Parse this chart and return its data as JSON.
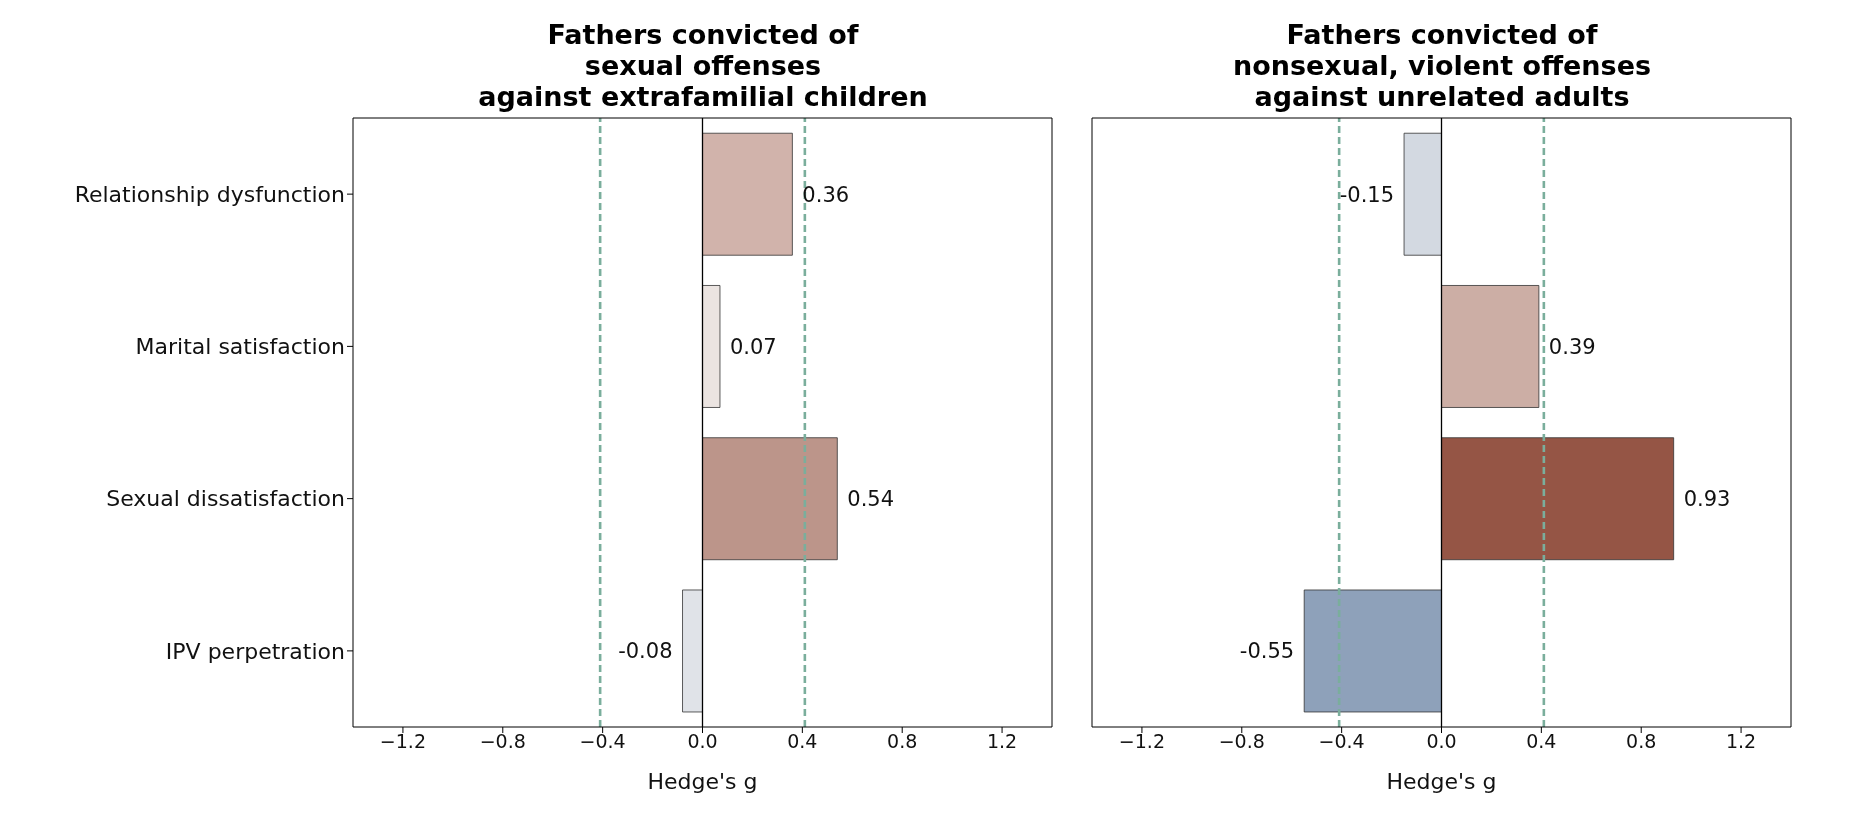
{
  "chart_data": [
    {
      "type": "bar",
      "orientation": "horizontal",
      "title": "Fathers convicted of\nsexual offenses\nagainst extrafamilial children",
      "xlabel": "Hedge's g",
      "categories": [
        "Relationship dysfunction",
        "Marital satisfaction",
        "Sexual dissatisfaction",
        "IPV perpetration"
      ],
      "values": [
        0.36,
        0.07,
        0.54,
        -0.08
      ],
      "colors": [
        "#d1b3ab",
        "#ebe4e1",
        "#bc958a",
        "#e0e3e8"
      ],
      "data_labels": true,
      "xlim": [
        -1.4,
        1.4
      ],
      "xticks": [
        {
          "value": -1.2,
          "label": "−1.2"
        },
        {
          "value": -0.8,
          "label": "−0.8"
        },
        {
          "value": -0.4,
          "label": "−0.4"
        },
        {
          "value": 0,
          "label": "0.0"
        },
        {
          "value": 0.4,
          "label": "0.4"
        },
        {
          "value": 0.8,
          "label": "0.8"
        },
        {
          "value": 1.2,
          "label": "1.2"
        }
      ],
      "ref_lines": [
        {
          "axis": "x",
          "value": 0,
          "color": "#000000",
          "line_style": "solid"
        },
        {
          "axis": "x",
          "value": -0.41,
          "color": "#7aae9c",
          "line_style": "dashed"
        },
        {
          "axis": "x",
          "value": 0.41,
          "color": "#7aae9c",
          "line_style": "dashed"
        }
      ]
    },
    {
      "type": "bar",
      "orientation": "horizontal",
      "title": "Fathers convicted of\nnonsexual, violent offenses\nagainst unrelated adults",
      "xlabel": "Hedge's g",
      "tick_labels": "x",
      "values": [
        -0.15,
        0.39,
        0.93,
        -0.55
      ],
      "colors": [
        "#d3d9e1",
        "#ccaea5",
        "#955545",
        "#8ea1ba"
      ],
      "data_labels": true,
      "xlim": [
        -1.4,
        1.4
      ],
      "xticks": [
        {
          "value": -1.2,
          "label": "−1.2"
        },
        {
          "value": -0.8,
          "label": "−0.8"
        },
        {
          "value": -0.4,
          "label": "−0.4"
        },
        {
          "value": 0,
          "label": "0.0"
        },
        {
          "value": 0.4,
          "label": "0.4"
        },
        {
          "value": 0.8,
          "label": "0.8"
        },
        {
          "value": 1.2,
          "label": "1.2"
        }
      ],
      "ref_lines": [
        {
          "axis": "x",
          "value": 0,
          "color": "#000000",
          "line_style": "solid"
        },
        {
          "axis": "x",
          "value": -0.41,
          "color": "#7aae9c",
          "line_style": "dashed"
        },
        {
          "axis": "x",
          "value": 0.41,
          "color": "#7aae9c",
          "line_style": "dashed"
        }
      ]
    }
  ]
}
